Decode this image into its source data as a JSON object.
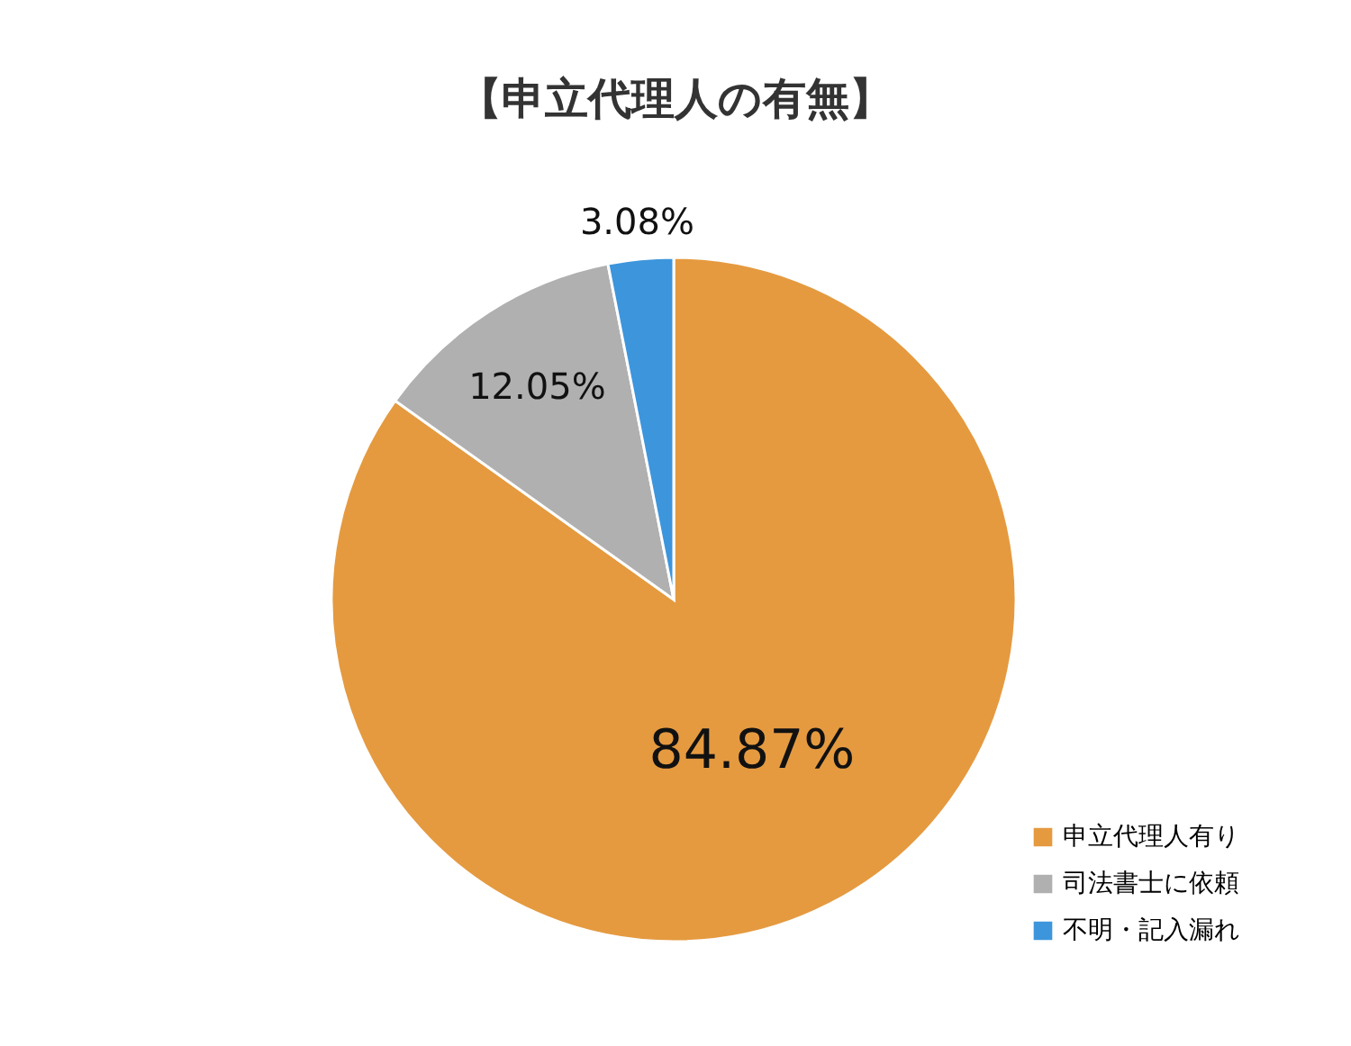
{
  "chart_data": {
    "type": "pie",
    "title": "【申立代理人の有無】",
    "categories": [
      "申立代理人有り",
      "司法書士に依頼",
      "不明・記入漏れ"
    ],
    "values": [
      84.87,
      12.05,
      3.08
    ],
    "colors": [
      "#e59a40",
      "#b0b0b0",
      "#3d95dc"
    ],
    "value_labels": [
      "84.87%",
      "12.05%",
      "3.08%"
    ],
    "legend": "bottom right"
  }
}
